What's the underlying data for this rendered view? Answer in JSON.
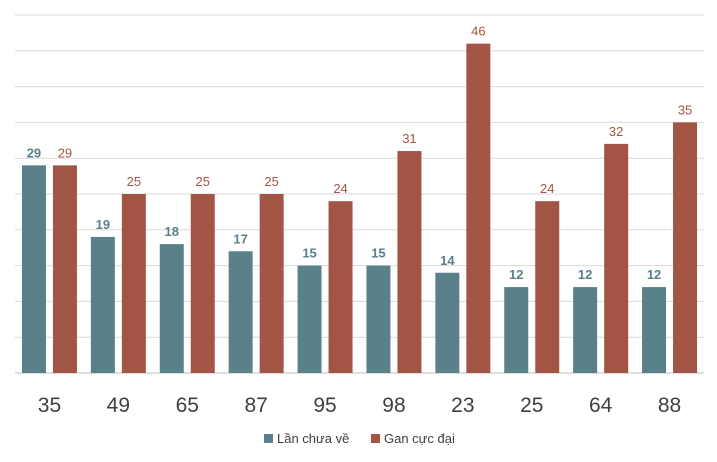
{
  "chart_data": {
    "type": "bar",
    "title": "",
    "xlabel": "",
    "ylabel": "",
    "ylim": [
      0,
      50
    ],
    "grid": true,
    "legend_position": "bottom",
    "categories": [
      "35",
      "49",
      "65",
      "87",
      "95",
      "98",
      "23",
      "25",
      "64",
      "88"
    ],
    "series": [
      {
        "name": "Lần chưa về",
        "color": "#5a8089",
        "values": [
          29,
          19,
          18,
          17,
          15,
          15,
          14,
          12,
          12,
          12
        ]
      },
      {
        "name": "Gan cực đại",
        "color": "#a35545",
        "values": [
          29,
          25,
          25,
          25,
          24,
          31,
          46,
          24,
          32,
          35
        ]
      }
    ]
  }
}
